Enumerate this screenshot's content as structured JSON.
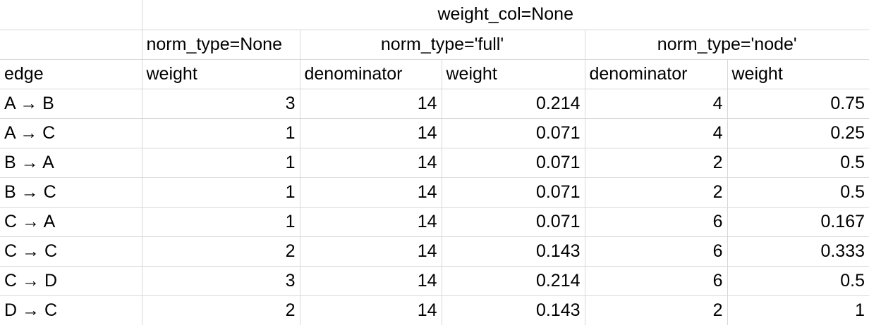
{
  "header": {
    "group_title": "weight_col=None",
    "norm_none": "norm_type=None",
    "norm_full": "norm_type='full'",
    "norm_node": "norm_type='node'"
  },
  "columns": {
    "edge": "edge",
    "weight": "weight",
    "denominator": "denominator"
  },
  "rows": [
    {
      "edge": "A → B",
      "weight": "3",
      "full_denominator": "14",
      "full_weight": "0.214",
      "node_denominator": "4",
      "node_weight": "0.75"
    },
    {
      "edge": "A → C",
      "weight": "1",
      "full_denominator": "14",
      "full_weight": "0.071",
      "node_denominator": "4",
      "node_weight": "0.25"
    },
    {
      "edge": "B → A",
      "weight": "1",
      "full_denominator": "14",
      "full_weight": "0.071",
      "node_denominator": "2",
      "node_weight": "0.5"
    },
    {
      "edge": "B → C",
      "weight": "1",
      "full_denominator": "14",
      "full_weight": "0.071",
      "node_denominator": "2",
      "node_weight": "0.5"
    },
    {
      "edge": "C → A",
      "weight": "1",
      "full_denominator": "14",
      "full_weight": "0.071",
      "node_denominator": "6",
      "node_weight": "0.167"
    },
    {
      "edge": "C → C",
      "weight": "2",
      "full_denominator": "14",
      "full_weight": "0.143",
      "node_denominator": "6",
      "node_weight": "0.333"
    },
    {
      "edge": "C → D",
      "weight": "3",
      "full_denominator": "14",
      "full_weight": "0.214",
      "node_denominator": "6",
      "node_weight": "0.5"
    },
    {
      "edge": "D → C",
      "weight": "2",
      "full_denominator": "14",
      "full_weight": "0.143",
      "node_denominator": "2",
      "node_weight": "1"
    }
  ]
}
